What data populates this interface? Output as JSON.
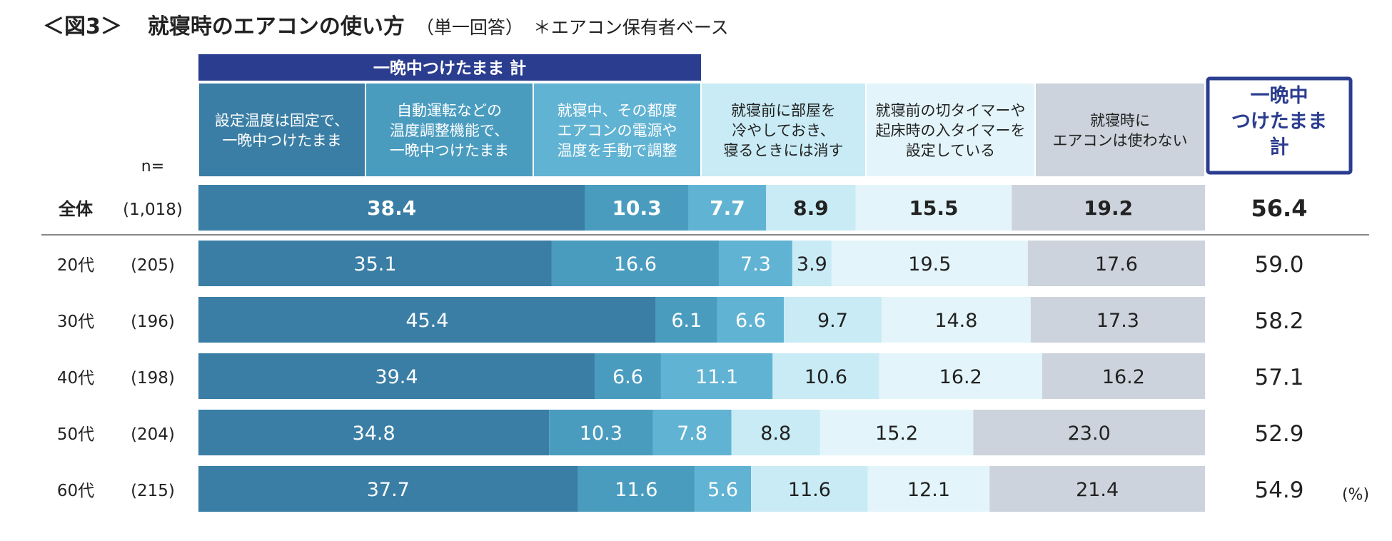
{
  "title": {
    "figure_label": "＜図3＞",
    "main": "就寝時のエアコンの使い方",
    "sub": "（単一回答）",
    "note": "＊エアコン保有者ベース"
  },
  "colors": {
    "c1": "#3a7ea5",
    "c2": "#4a9cbf",
    "c3": "#61b3d3",
    "c4": "#c9ebf5",
    "c5": "#e3f5fa",
    "c6": "#ccd3dc",
    "group_header": "#2b3d8f",
    "total_box_border": "#2b3d8f",
    "total_box_text": "#2b3d8f"
  },
  "chart_data": {
    "type": "bar",
    "stacked": "100%",
    "orientation": "horizontal",
    "group_header": "一晩中つけたまま 計",
    "n_label": "n=",
    "unit_label": "(%)",
    "total_header": [
      "一晩中",
      "つけたまま",
      "計"
    ],
    "series": [
      {
        "name": [
          "設定温度は固定で、",
          "一晩中つけたまま"
        ],
        "color_key": "c1"
      },
      {
        "name": [
          "自動運転などの",
          "温度調整機能で、",
          "一晩中つけたまま"
        ],
        "color_key": "c2"
      },
      {
        "name": [
          "就寝中、その都度",
          "エアコンの電源や",
          "温度を手動で調整"
        ],
        "color_key": "c3"
      },
      {
        "name": [
          "就寝前に部屋を",
          "冷やしておき、",
          "寝るときには消す"
        ],
        "color_key": "c4"
      },
      {
        "name": [
          "就寝前の切タイマーや",
          "起床時の入タイマーを",
          "設定している"
        ],
        "color_key": "c5"
      },
      {
        "name": [
          "就寝時に",
          "エアコンは使わない"
        ],
        "color_key": "c6"
      }
    ],
    "categories": [
      {
        "label": "全体",
        "n": "(1,018)",
        "values": [
          38.4,
          10.3,
          7.7,
          8.9,
          15.5,
          19.2
        ],
        "total": 56.4,
        "bold": true
      },
      {
        "label": "20代",
        "n": "(205)",
        "values": [
          35.1,
          16.6,
          7.3,
          3.9,
          19.5,
          17.6
        ],
        "total": 59.0
      },
      {
        "label": "30代",
        "n": "(196)",
        "values": [
          45.4,
          6.1,
          6.6,
          9.7,
          14.8,
          17.3
        ],
        "total": 58.2
      },
      {
        "label": "40代",
        "n": "(198)",
        "values": [
          39.4,
          6.6,
          11.1,
          10.6,
          16.2,
          16.2
        ],
        "total": 57.1
      },
      {
        "label": "50代",
        "n": "(204)",
        "values": [
          34.8,
          10.3,
          7.8,
          8.8,
          15.2,
          23.0
        ],
        "total": 52.9
      },
      {
        "label": "60代",
        "n": "(215)",
        "values": [
          37.7,
          11.6,
          5.6,
          11.6,
          12.1,
          21.4
        ],
        "total": 54.9
      }
    ]
  }
}
